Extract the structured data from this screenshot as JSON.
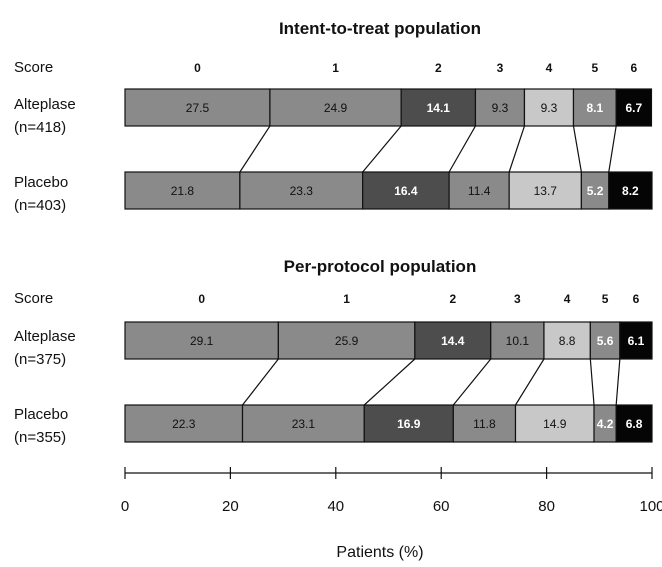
{
  "chart_data": {
    "type": "bar",
    "stacked": true,
    "orientation": "horizontal",
    "xlabel": "Patients (%)",
    "xlim": [
      0,
      100
    ],
    "xticks": [
      0,
      20,
      40,
      60,
      80,
      100
    ],
    "score_header": "Score",
    "scores": [
      "0",
      "1",
      "2",
      "3",
      "4",
      "5",
      "6"
    ],
    "colors": [
      "#8a8a8a",
      "#8a8a8a",
      "#4d4d4d",
      "#8a8a8a",
      "#c8c8c8",
      "#8a8a8a",
      "#050505"
    ],
    "label_colors": [
      "#111111",
      "#111111",
      "#ffffff",
      "#111111",
      "#111111",
      "#ffffff",
      "#ffffff"
    ],
    "panels": [
      {
        "title": "Intent-to-treat population",
        "groups": [
          {
            "label_line1": "Alteplase",
            "label_line2": "(n=418)",
            "values": [
              27.5,
              24.9,
              14.1,
              9.3,
              9.3,
              8.1,
              6.7
            ]
          },
          {
            "label_line1": "Placebo",
            "label_line2": "(n=403)",
            "values": [
              21.8,
              23.3,
              16.4,
              11.4,
              13.7,
              5.2,
              8.2
            ]
          }
        ]
      },
      {
        "title": "Per-protocol population",
        "groups": [
          {
            "label_line1": "Alteplase",
            "label_line2": "(n=375)",
            "values": [
              29.1,
              25.9,
              14.4,
              10.1,
              8.8,
              5.6,
              6.1
            ]
          },
          {
            "label_line1": "Placebo",
            "label_line2": "(n=355)",
            "values": [
              22.3,
              23.1,
              16.9,
              11.8,
              14.9,
              4.2,
              6.8
            ]
          }
        ]
      }
    ]
  }
}
